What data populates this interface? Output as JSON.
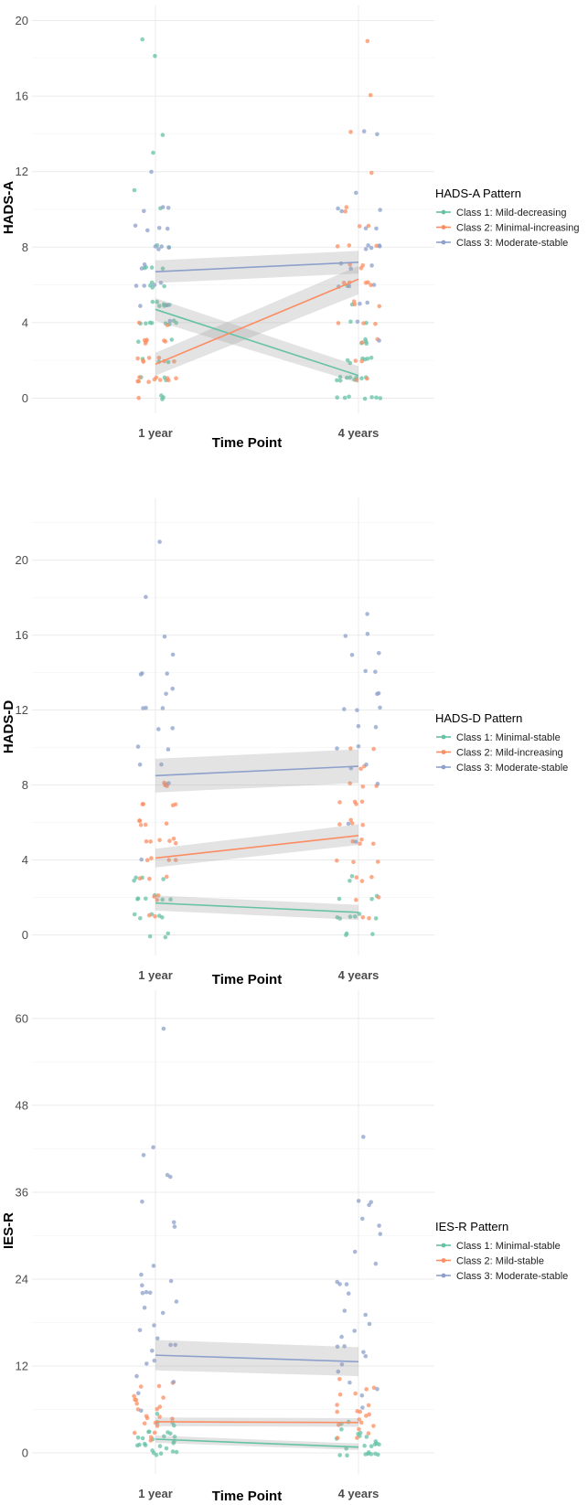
{
  "chart_data": [
    {
      "type": "scatter",
      "title": "",
      "xlabel": "Time Point",
      "ylabel": "HADS-A",
      "categories": [
        "1 year",
        "4 years"
      ],
      "ylim": [
        -0.8,
        20.8
      ],
      "yticks": [
        "0",
        "4",
        "8",
        "12",
        "16",
        "20"
      ],
      "legend": {
        "title": "HADS-A Pattern",
        "position": "right"
      },
      "series": [
        {
          "name": "Class 1: Mild-decreasing",
          "color": "#66c2a5",
          "points": {
            "1 year": [
              0,
              0,
              0,
              1,
              1,
              1,
              2,
              2,
              2,
              3,
              3,
              4,
              4,
              4,
              4,
              4,
              4,
              4,
              4,
              5,
              5,
              5,
              5,
              5,
              5,
              5,
              6,
              6,
              6,
              6,
              7,
              7,
              7,
              7,
              8,
              8,
              10,
              11,
              13,
              14,
              18,
              19
            ],
            "4 years": [
              0,
              0,
              0,
              0,
              0,
              0,
              0,
              1,
              1,
              1,
              1,
              1,
              1,
              1,
              1,
              1,
              2,
              2,
              2,
              2,
              2,
              2,
              3,
              3,
              3,
              3,
              4,
              4,
              5,
              6
            ]
          },
          "trend": [
            4.7,
            1.2
          ],
          "ci_low": [
            4.1,
            0.8
          ],
          "ci_high": [
            5.3,
            1.7
          ]
        },
        {
          "name": "Class 2: Minimal-increasing",
          "color": "#fc8d62",
          "points": {
            "1 year": [
              0,
              1,
              1,
              1,
              1,
              1,
              1,
              1,
              1,
              1,
              1,
              2,
              2,
              2,
              2,
              2,
              2,
              2,
              3,
              3,
              3,
              3,
              3,
              3,
              4,
              4
            ],
            "4 years": [
              1,
              1,
              2,
              2,
              3,
              3,
              4,
              4,
              4,
              5,
              5,
              5,
              6,
              6,
              6,
              6,
              6,
              7,
              7,
              7,
              8,
              8,
              8,
              9,
              9,
              10,
              10,
              12,
              14,
              16,
              19
            ]
          },
          "trend": [
            1.8,
            6.3
          ],
          "ci_low": [
            1.2,
            5.5
          ],
          "ci_high": [
            2.4,
            7.0
          ]
        },
        {
          "name": "Class 3: Moderate-stable",
          "color": "#8da0cb",
          "points": {
            "1 year": [
              4,
              5,
              5,
              6,
              6,
              6,
              6,
              7,
              7,
              8,
              8,
              8,
              8,
              9,
              9,
              9,
              9,
              10,
              10,
              10,
              12
            ],
            "4 years": [
              3,
              4,
              5,
              5,
              6,
              6,
              6,
              7,
              7,
              7,
              8,
              8,
              8,
              8,
              8,
              9,
              9,
              10,
              10,
              10,
              11,
              14,
              14
            ]
          },
          "trend": [
            6.7,
            7.2
          ],
          "ci_low": [
            6.1,
            6.6
          ],
          "ci_high": [
            7.3,
            7.8
          ]
        }
      ]
    },
    {
      "type": "scatter",
      "title": "",
      "xlabel": "Time Point",
      "ylabel": "HADS-D",
      "categories": [
        "1 year",
        "4 years"
      ],
      "ylim": [
        -1.1,
        23.3
      ],
      "yticks": [
        "0",
        "4",
        "8",
        "12",
        "16",
        "20"
      ],
      "legend": {
        "title": "HADS-D Pattern",
        "position": "right"
      },
      "series": [
        {
          "name": "Class 1: Minimal-stable",
          "color": "#66c2a5",
          "points": {
            "1 year": [
              0,
              0,
              0,
              1,
              1,
              1,
              1,
              1,
              2,
              2,
              2,
              2,
              2,
              2,
              3,
              3,
              3,
              3
            ],
            "4 years": [
              0,
              0,
              0,
              1,
              1,
              1,
              1,
              1,
              1,
              2,
              2,
              2,
              3,
              3
            ]
          },
          "trend": [
            1.7,
            1.2
          ],
          "ci_low": [
            1.3,
            0.8
          ],
          "ci_high": [
            2.1,
            1.6
          ]
        },
        {
          "name": "Class 2: Mild-increasing",
          "color": "#fc8d62",
          "points": {
            "1 year": [
              1,
              1,
              2,
              2,
              2,
              3,
              3,
              3,
              4,
              4,
              4,
              4,
              5,
              5,
              5,
              5,
              5,
              5,
              6,
              6,
              6,
              6,
              6,
              7,
              7,
              7,
              7,
              8,
              8,
              8,
              8
            ],
            "4 years": [
              1,
              1,
              2,
              2,
              3,
              3,
              3,
              4,
              4,
              4,
              5,
              5,
              5,
              5,
              6,
              6,
              6,
              6,
              7,
              7,
              7,
              7,
              8,
              8,
              8,
              9,
              9,
              10,
              10
            ]
          },
          "trend": [
            4.1,
            5.3
          ],
          "ci_low": [
            3.6,
            4.8
          ],
          "ci_high": [
            4.6,
            5.9
          ]
        },
        {
          "name": "Class 3: Moderate-stable",
          "color": "#8da0cb",
          "points": {
            "1 year": [
              4,
              8,
              9,
              9,
              10,
              10,
              11,
              11,
              12,
              12,
              12,
              13,
              13,
              14,
              14,
              14,
              15,
              16,
              18,
              21
            ],
            "4 years": [
              5,
              6,
              8,
              9,
              9,
              10,
              10,
              11,
              11,
              12,
              12,
              12,
              13,
              13,
              14,
              14,
              15,
              15,
              16,
              16,
              17
            ]
          },
          "trend": [
            8.5,
            9.0
          ],
          "ci_low": [
            7.6,
            8.1
          ],
          "ci_high": [
            9.4,
            9.9
          ]
        }
      ]
    },
    {
      "type": "scatter",
      "title": "",
      "xlabel": "Time Point",
      "ylabel": "IES-R",
      "categories": [
        "1 year",
        "4 years"
      ],
      "ylim": [
        -2.9,
        63.9
      ],
      "yticks": [
        "0",
        "12",
        "24",
        "36",
        "48",
        "60"
      ],
      "legend": {
        "title": "IES-R Pattern",
        "position": "right"
      },
      "series": [
        {
          "name": "Class 1: Minimal-stable",
          "color": "#66c2a5",
          "points": {
            "1 year": [
              0,
              0,
              0,
              0,
              0,
              0,
              1,
              1,
              1,
              1,
              1,
              1,
              1,
              2,
              2,
              2,
              2,
              2,
              2,
              3,
              3,
              3,
              3,
              4,
              4,
              4,
              5
            ],
            "4 years": [
              0,
              0,
              0,
              0,
              0,
              0,
              0,
              0,
              1,
              1,
              1,
              1,
              1,
              1,
              2,
              2,
              2,
              2,
              3,
              3,
              3,
              4,
              4
            ]
          },
          "trend": [
            1.9,
            0.8
          ],
          "ci_low": [
            1.4,
            0.4
          ],
          "ci_high": [
            2.4,
            1.3
          ]
        },
        {
          "name": "Class 2: Mild-stable",
          "color": "#fc8d62",
          "points": {
            "1 year": [
              2,
              2,
              3,
              3,
              4,
              4,
              4,
              5,
              5,
              5,
              5,
              6,
              6,
              6,
              7,
              7,
              7,
              8,
              8,
              9,
              9,
              10
            ],
            "4 years": [
              2,
              2,
              3,
              3,
              4,
              4,
              4,
              5,
              5,
              5,
              6,
              6,
              6,
              7,
              7,
              8,
              8,
              9,
              9,
              10
            ]
          },
          "trend": [
            4.3,
            4.2
          ],
          "ci_low": [
            3.7,
            3.6
          ],
          "ci_high": [
            4.9,
            4.8
          ]
        },
        {
          "name": "Class 3: Moderate-stable",
          "color": "#8da0cb",
          "points": {
            "1 year": [
              6,
              8,
              10,
              11,
              12,
              13,
              14,
              15,
              15,
              16,
              17,
              18,
              19,
              20,
              21,
              22,
              22,
              22,
              23,
              24,
              25,
              26,
              31,
              32,
              35,
              38,
              38,
              41,
              42,
              59
            ],
            "4 years": [
              6,
              8,
              9,
              10,
              11,
              12,
              13,
              14,
              15,
              15,
              16,
              17,
              18,
              19,
              20,
              22,
              23,
              23,
              24,
              26,
              28,
              30,
              31,
              32,
              34,
              35,
              35,
              44
            ]
          },
          "trend": [
            13.5,
            12.6
          ],
          "ci_low": [
            11.4,
            10.6
          ],
          "ci_high": [
            15.6,
            14.6
          ]
        }
      ]
    }
  ]
}
